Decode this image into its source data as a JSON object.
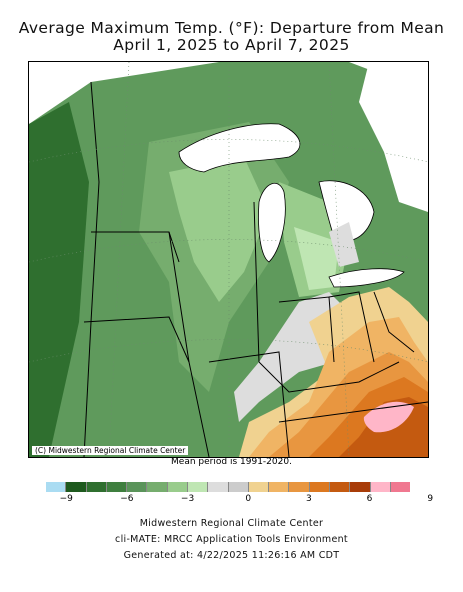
{
  "title_line1": "Average Maximum Temp. (°F): Departure from Mean",
  "title_line2": "April 1, 2025 to April 7, 2025",
  "map_credit": "(C) Midwestern Regional Climate Center",
  "mean_period": "Mean period is 1991-2020.",
  "legend": {
    "colors": [
      "#aadcf2",
      "#1e5a1e",
      "#2f6f2f",
      "#3f7f3f",
      "#5a945a",
      "#76ad6e",
      "#99cc8c",
      "#bfe6b3",
      "#dddddd",
      "#cccccc",
      "#f0d290",
      "#f0b464",
      "#e89640",
      "#dc7820",
      "#c45a10",
      "#a83c08",
      "#ffb6c8",
      "#f07890"
    ],
    "tick_labels": [
      "−9",
      "−6",
      "−3",
      "0",
      "3",
      "6",
      "9"
    ]
  },
  "footer": {
    "line1": "Midwestern Regional Climate Center",
    "line2": "cli-MATE: MRCC Application Tools Environment",
    "line3": "Generated at: 4/22/2025 11:26:16 AM CDT"
  }
}
